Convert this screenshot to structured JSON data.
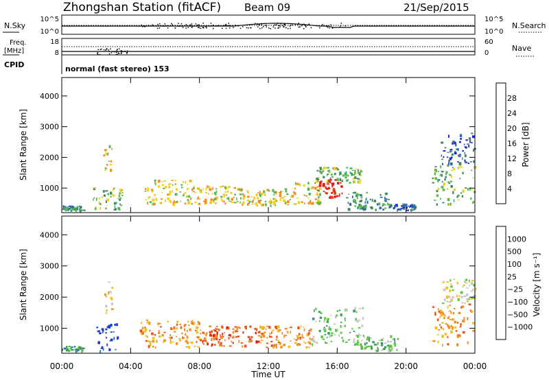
{
  "header": {
    "station": "Zhongshan Station (fitACF)",
    "beam": "Beam 09",
    "date": "21/Sep/2015"
  },
  "noise_panel": {
    "left_label": "N.Sky",
    "right_label": "N.Search",
    "left_ticks": [
      "10^5",
      "10^0"
    ],
    "right_ticks": [
      "10^5",
      "10^0"
    ]
  },
  "freq_panel": {
    "left_label_1": "Freq.",
    "left_label_2": "[MHz]",
    "left_ticks": [
      "18",
      "8"
    ],
    "right_label": "Nave",
    "right_ticks": [
      "60",
      "0"
    ]
  },
  "cpid": {
    "label": "CPID",
    "value": "normal (fast stereo) 153"
  },
  "chart_data": [
    {
      "type": "heatmap",
      "name": "power",
      "ylabel": "Slant Range [km]",
      "yticks": [
        "1000",
        "2000",
        "3000",
        "4000"
      ],
      "ylim": [
        200,
        4600
      ],
      "xlim_hours": [
        0,
        24
      ],
      "colorbar_label": "Power [dB]",
      "colorbar_ticks": [
        "4",
        "8",
        "12",
        "16",
        "20",
        "24",
        "28"
      ],
      "colorbar_colors": [
        "#1f1fe0",
        "#2f6aa8",
        "#3e8c5c",
        "#58b858",
        "#f0d020",
        "#f09020",
        "#e84818",
        "#e81a10"
      ],
      "regions": [
        {
          "t0": 0.0,
          "t1": 1.3,
          "r0": 280,
          "r1": 450,
          "v": 2
        },
        {
          "t0": 1.8,
          "t1": 3.5,
          "r0": 300,
          "r1": 1050,
          "v": 3
        },
        {
          "t0": 2.4,
          "t1": 2.9,
          "r0": 1500,
          "r1": 2500,
          "v": 4
        },
        {
          "t0": 4.8,
          "t1": 7.5,
          "r0": 500,
          "r1": 1300,
          "v": 4
        },
        {
          "t0": 7.5,
          "t1": 10.5,
          "r0": 500,
          "r1": 1100,
          "v": 4
        },
        {
          "t0": 10.5,
          "t1": 13.5,
          "r0": 450,
          "r1": 1000,
          "v": 4
        },
        {
          "t0": 13.5,
          "t1": 15.0,
          "r0": 500,
          "r1": 1200,
          "v": 4
        },
        {
          "t0": 14.8,
          "t1": 16.3,
          "r0": 700,
          "r1": 1300,
          "v": 7
        },
        {
          "t0": 14.7,
          "t1": 17.4,
          "r0": 1200,
          "r1": 1700,
          "v": 3
        },
        {
          "t0": 16.5,
          "t1": 19.0,
          "r0": 300,
          "r1": 900,
          "v": 2
        },
        {
          "t0": 19.0,
          "t1": 20.5,
          "r0": 300,
          "r1": 500,
          "v": 1
        },
        {
          "t0": 21.5,
          "t1": 24.0,
          "r0": 500,
          "r1": 1800,
          "v": 3
        },
        {
          "t0": 22.0,
          "t1": 24.0,
          "r0": 1800,
          "r1": 2800,
          "v": 1
        }
      ]
    },
    {
      "type": "heatmap",
      "name": "velocity",
      "ylabel": "Slant Range [km]",
      "yticks": [
        "1000",
        "2000",
        "3000",
        "4000"
      ],
      "ylim": [
        200,
        4600
      ],
      "xlim_hours": [
        0,
        24
      ],
      "xticks": [
        "00:00",
        "04:00",
        "08:00",
        "12:00",
        "16:00",
        "20:00",
        "00:00"
      ],
      "xlabel": "Time UT",
      "colorbar_label": "Velocity [m s⁻¹]",
      "colorbar_ticks": [
        "1000",
        "500",
        "100",
        "25",
        "−25",
        "−100",
        "−500",
        "−1000"
      ],
      "colorbar_colors": [
        "#2040c8",
        "#2f7aa8",
        "#3e9a5e",
        "#5cc840",
        "#c8c8c8",
        "#f0c020",
        "#f09020",
        "#e85818",
        "#e81a10"
      ],
      "regions": [
        {
          "t0": 0.0,
          "t1": 1.3,
          "r0": 280,
          "r1": 450,
          "v": 2
        },
        {
          "t0": 2.0,
          "t1": 3.2,
          "r0": 300,
          "r1": 1200,
          "v": 0
        },
        {
          "t0": 2.4,
          "t1": 2.9,
          "r0": 1500,
          "r1": 2500,
          "v": 5
        },
        {
          "t0": 4.5,
          "t1": 8.0,
          "r0": 400,
          "r1": 1300,
          "v": 6
        },
        {
          "t0": 8.0,
          "t1": 11.5,
          "r0": 450,
          "r1": 1100,
          "v": 7
        },
        {
          "t0": 11.5,
          "t1": 14.5,
          "r0": 400,
          "r1": 1100,
          "v": 6
        },
        {
          "t0": 14.5,
          "t1": 17.5,
          "r0": 500,
          "r1": 1700,
          "v": 3
        },
        {
          "t0": 17.0,
          "t1": 19.5,
          "r0": 300,
          "r1": 800,
          "v": 3
        },
        {
          "t0": 21.5,
          "t1": 24.0,
          "r0": 500,
          "r1": 1800,
          "v": 6
        },
        {
          "t0": 22.0,
          "t1": 24.0,
          "r0": 1800,
          "r1": 2600,
          "v": 4
        }
      ]
    }
  ]
}
